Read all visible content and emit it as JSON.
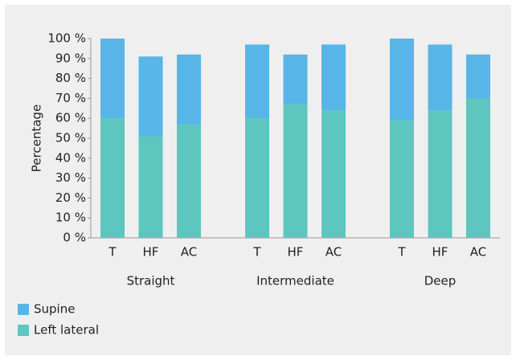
{
  "chart_data": {
    "type": "stacked_bar",
    "y_label": "Percentage",
    "categories": [
      "T",
      "HF",
      "AC",
      "T",
      "HF",
      "AC",
      "T",
      "HF",
      "AC"
    ],
    "groups": [
      "Straight",
      "Intermediate",
      "Deep"
    ],
    "series": [
      {
        "name": "Left lateral",
        "color": "#5cc6bf",
        "values": [
          60,
          51,
          57,
          60,
          67,
          64,
          59,
          64,
          70
        ]
      },
      {
        "name": "Supine",
        "color": "#57b5e7",
        "values": [
          40,
          40,
          35,
          37,
          25,
          33,
          41,
          33,
          22
        ]
      }
    ],
    "legend_order": [
      1,
      0
    ],
    "ylim": [
      0,
      100
    ],
    "yticks": [
      {
        "value": 0,
        "label": "0 %"
      },
      {
        "value": 10,
        "label": "10 %"
      },
      {
        "value": 20,
        "label": "20 %"
      },
      {
        "value": 30,
        "label": "30 %"
      },
      {
        "value": 40,
        "label": "40 %"
      },
      {
        "value": 50,
        "label": "50 %"
      },
      {
        "value": 60,
        "label": "60 %"
      },
      {
        "value": 70,
        "label": "70 %"
      },
      {
        "value": 80,
        "label": "80 %"
      },
      {
        "value": 90,
        "label": "90 %"
      },
      {
        "value": 100,
        "label": "100 %"
      }
    ]
  }
}
